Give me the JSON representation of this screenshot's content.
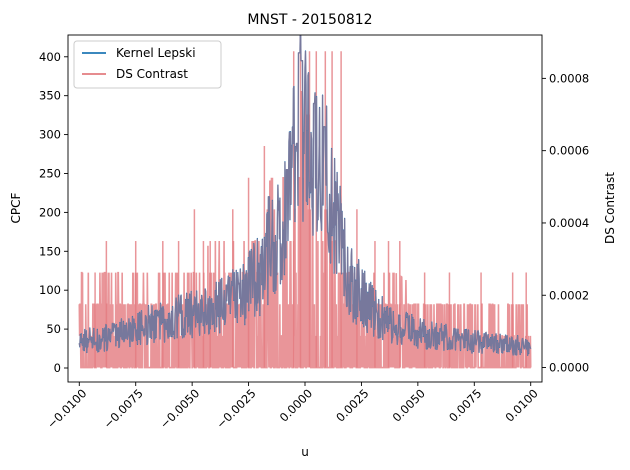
{
  "chart_data": {
    "type": "line",
    "title": "MNST - 20150812",
    "xlabel": "u",
    "ylabel": "CPCF",
    "ylabel_right": "DS Contrast",
    "xlim": [
      -0.0105,
      0.0105
    ],
    "ylim": [
      -18,
      428
    ],
    "ylim_right": [
      -4e-05,
      0.00092
    ],
    "xticks": [
      {
        "value": -0.01,
        "label": "−0.0100"
      },
      {
        "value": -0.0075,
        "label": "−0.0075"
      },
      {
        "value": -0.005,
        "label": "−0.0050"
      },
      {
        "value": -0.0025,
        "label": "−0.0025"
      },
      {
        "value": 0.0,
        "label": "0.0000"
      },
      {
        "value": 0.0025,
        "label": "0.0025"
      },
      {
        "value": 0.005,
        "label": "0.0050"
      },
      {
        "value": 0.0075,
        "label": "0.0075"
      },
      {
        "value": 0.01,
        "label": "0.0100"
      }
    ],
    "yticks": [
      {
        "value": 0,
        "label": "0"
      },
      {
        "value": 50,
        "label": "50"
      },
      {
        "value": 100,
        "label": "100"
      },
      {
        "value": 150,
        "label": "150"
      },
      {
        "value": 200,
        "label": "200"
      },
      {
        "value": 250,
        "label": "250"
      },
      {
        "value": 300,
        "label": "300"
      },
      {
        "value": 350,
        "label": "350"
      },
      {
        "value": 400,
        "label": "400"
      }
    ],
    "yticks_right": [
      {
        "value": 0.0,
        "label": "0.0000"
      },
      {
        "value": 0.0002,
        "label": "0.0002"
      },
      {
        "value": 0.0004,
        "label": "0.0004"
      },
      {
        "value": 0.0006,
        "label": "0.0006"
      },
      {
        "value": 0.0008,
        "label": "0.0008"
      }
    ],
    "legend": {
      "position": "upper-left",
      "entries": [
        {
          "label": "Kernel Lepski",
          "color": "#1f77b4"
        },
        {
          "label": "DS Contrast",
          "color": "#e37b7f"
        }
      ]
    },
    "series": [
      {
        "name": "DS Contrast",
        "axis": "right",
        "color": "#e37b7f",
        "alpha": 0.8,
        "quantum": 8.75e-05,
        "x_range": [
          -0.01,
          0.01
        ],
        "baseline_levels": [
          0,
          8.75e-05,
          0.000175
        ],
        "envelope": {
          "x": [
            -0.01,
            -0.008,
            -0.006,
            -0.004,
            -0.0025,
            -0.0015,
            -0.0005,
            0.0,
            0.0005,
            0.0015,
            0.0025,
            0.004,
            0.006,
            0.008,
            0.01
          ],
          "typical_max": [
            0.000263,
            0.000263,
            0.000263,
            0.00035,
            0.00035,
            0.000525,
            0.000525,
            0.000875,
            0.000525,
            0.00035,
            0.000263,
            0.000263,
            0.000175,
            0.000175,
            0.000175
          ]
        },
        "spikes": [
          {
            "x": -0.0093,
            "value": 0.000263
          },
          {
            "x": -0.0088,
            "value": 0.00035
          },
          {
            "x": -0.0075,
            "value": 0.00035
          },
          {
            "x": -0.0063,
            "value": 0.00035
          },
          {
            "x": -0.0056,
            "value": 0.00035
          },
          {
            "x": -0.0049,
            "value": 0.000438
          },
          {
            "x": -0.0045,
            "value": 0.00035
          },
          {
            "x": -0.0042,
            "value": 0.00035
          },
          {
            "x": -0.0032,
            "value": 0.000438
          },
          {
            "x": -0.0025,
            "value": 0.000525
          },
          {
            "x": -0.0018,
            "value": 0.000613
          },
          {
            "x": -0.0005,
            "value": 0.000875
          },
          {
            "x": -0.0002,
            "value": 0.000875
          },
          {
            "x": 0.0002,
            "value": 0.000875
          },
          {
            "x": 0.0005,
            "value": 0.000875
          },
          {
            "x": 0.0009,
            "value": 0.000875
          },
          {
            "x": 0.0012,
            "value": 0.000875
          },
          {
            "x": 0.0016,
            "value": 0.000875
          },
          {
            "x": 0.0023,
            "value": 0.000438
          },
          {
            "x": 0.0031,
            "value": 0.00035
          },
          {
            "x": 0.0037,
            "value": 0.00035
          },
          {
            "x": 0.0042,
            "value": 0.00035
          },
          {
            "x": 0.0053,
            "value": 0.000263
          },
          {
            "x": 0.0064,
            "value": 0.000263
          },
          {
            "x": 0.0078,
            "value": 0.000263
          },
          {
            "x": 0.0092,
            "value": 0.000263
          },
          {
            "x": 0.0098,
            "value": 0.000263
          }
        ]
      },
      {
        "name": "Kernel Lepski",
        "axis": "left",
        "color": "#1f77b4",
        "x_range": [
          -0.01,
          0.01
        ],
        "profile": {
          "x": [
            -0.01,
            -0.009,
            -0.008,
            -0.007,
            -0.006,
            -0.005,
            -0.004,
            -0.003,
            -0.002,
            -0.001,
            -0.0005,
            -0.0002,
            0.0,
            0.0003,
            0.0006,
            0.001,
            0.0015,
            0.002,
            0.003,
            0.004,
            0.005,
            0.006,
            0.007,
            0.008,
            0.009,
            0.01
          ],
          "y": [
            35,
            38,
            45,
            55,
            62,
            70,
            75,
            90,
            120,
            180,
            250,
            330,
            290,
            300,
            280,
            240,
            170,
            110,
            75,
            55,
            45,
            40,
            35,
            33,
            30,
            28
          ]
        },
        "peaks": [
          {
            "x": -0.00025,
            "value": 405
          },
          {
            "x": -0.00015,
            "value": 395
          },
          {
            "x": 0.0004,
            "value": 340
          },
          {
            "x": 0.00085,
            "value": 310
          },
          {
            "x": -0.0008,
            "value": 255
          },
          {
            "x": -0.0016,
            "value": 220
          }
        ]
      }
    ]
  }
}
